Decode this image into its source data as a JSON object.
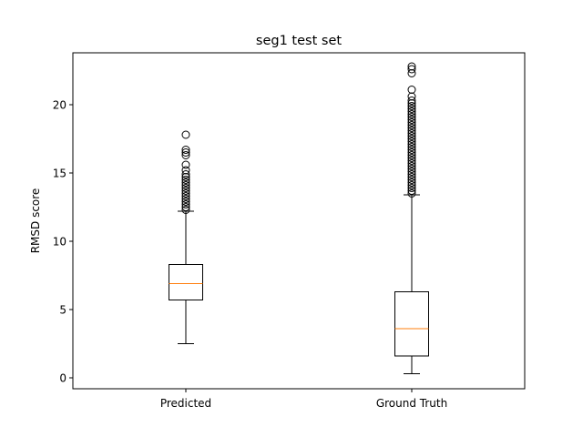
{
  "chart_data": {
    "type": "box",
    "title": "seg1 test set",
    "xlabel": "",
    "ylabel": "RMSD score",
    "ylim": [
      -0.8,
      23.8
    ],
    "yticks": [
      0,
      5,
      10,
      15,
      20
    ],
    "grid": false,
    "categories": [
      "Predicted",
      "Ground Truth"
    ],
    "boxes": [
      {
        "label": "Predicted",
        "whisker_low": 2.5,
        "q1": 5.7,
        "median": 6.9,
        "q3": 8.3,
        "whisker_high": 12.2,
        "outliers": [
          12.3,
          12.5,
          12.7,
          12.9,
          13.1,
          13.3,
          13.5,
          13.7,
          13.9,
          14.1,
          14.3,
          14.5,
          14.7,
          14.9,
          15.2,
          15.6,
          16.3,
          16.5,
          16.7,
          17.8
        ]
      },
      {
        "label": "Ground Truth",
        "whisker_low": 0.3,
        "q1": 1.6,
        "median": 3.6,
        "q3": 6.3,
        "whisker_high": 13.4,
        "outliers": [
          13.5,
          13.7,
          13.9,
          14.1,
          14.3,
          14.5,
          14.7,
          14.9,
          15.1,
          15.3,
          15.5,
          15.7,
          15.9,
          16.1,
          16.3,
          16.5,
          16.7,
          16.9,
          17.1,
          17.3,
          17.5,
          17.7,
          17.9,
          18.1,
          18.3,
          18.5,
          18.7,
          18.9,
          19.1,
          19.3,
          19.5,
          19.7,
          19.9,
          20.1,
          20.3,
          20.6,
          21.1,
          22.3,
          22.6,
          22.8
        ]
      }
    ],
    "colors": {
      "box": "#000000",
      "median": "#ff7f0e",
      "frame": "#000000"
    }
  }
}
